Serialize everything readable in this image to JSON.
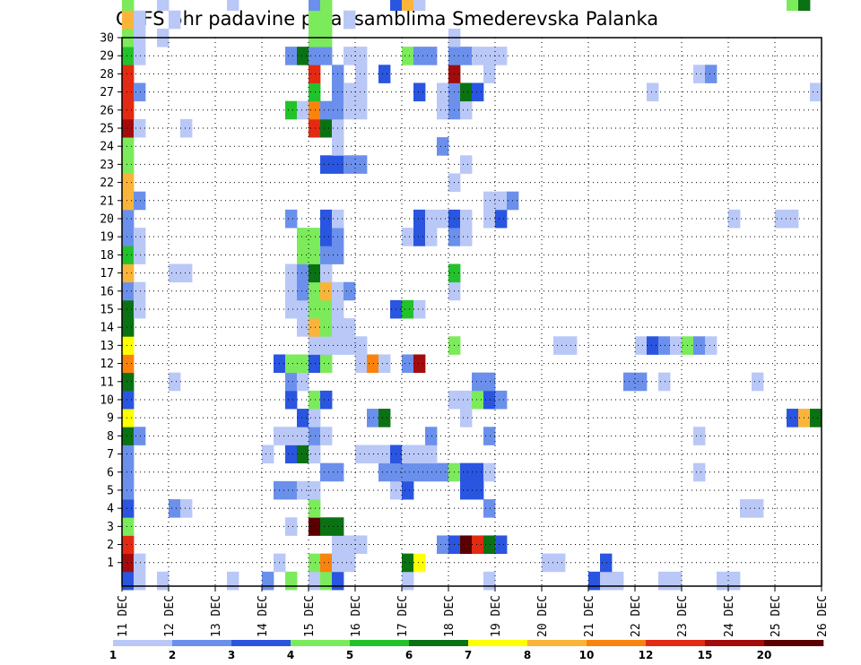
{
  "chart_data": {
    "type": "heatmap",
    "title": "GEFS 6hr padavine po ansamblima Smederevska Palanka",
    "xlabel": "",
    "ylabel": "",
    "x_tick_labels": [
      "11 DEC",
      "12 DEC",
      "13 DEC",
      "14 DEC",
      "15 DEC",
      "16 DEC",
      "17 DEC",
      "18 DEC",
      "19 DEC",
      "20 DEC",
      "21 DEC",
      "22 DEC",
      "23 DEC",
      "24 DEC",
      "25 DEC",
      "26 DEC"
    ],
    "y_tick_labels": [
      "1",
      "2",
      "3",
      "4",
      "5",
      "6",
      "7",
      "8",
      "9",
      "10",
      "11",
      "12",
      "13",
      "14",
      "15",
      "16",
      "17",
      "18",
      "19",
      "20",
      "21",
      "22",
      "23",
      "24",
      "25",
      "26",
      "27",
      "28",
      "29",
      "30"
    ],
    "x_range_days": [
      0,
      15
    ],
    "y_range": [
      0,
      30
    ],
    "grid": true,
    "time_step_hours": 6,
    "colorbar": {
      "labels": [
        "1",
        "2",
        "3",
        "4",
        "5",
        "6",
        "7",
        "8",
        "10",
        "12",
        "15",
        "20"
      ],
      "colors": [
        "#b9c8f7",
        "#6b90ec",
        "#2a55e0",
        "#7ceb5b",
        "#22c22a",
        "#0b7213",
        "#ffff00",
        "#fbb43a",
        "#fa830d",
        "#e32a12",
        "#a30c0c",
        "#5a0000"
      ]
    },
    "cells_note": "each entry: [ensemble member, 6-hour step index from 11 DEC 00z, color class 1-12]",
    "cells": [
      [
        0,
        0,
        3
      ],
      [
        0,
        1,
        1
      ],
      [
        0,
        3,
        1
      ],
      [
        0,
        9,
        1
      ],
      [
        0,
        12,
        2
      ],
      [
        0,
        14,
        4
      ],
      [
        0,
        16,
        1
      ],
      [
        0,
        17,
        4
      ],
      [
        0,
        18,
        3
      ],
      [
        0,
        24,
        1
      ],
      [
        0,
        31,
        1
      ],
      [
        0,
        40,
        3
      ],
      [
        0,
        41,
        1
      ],
      [
        0,
        42,
        1
      ],
      [
        0,
        46,
        1
      ],
      [
        0,
        47,
        1
      ],
      [
        0,
        51,
        1
      ],
      [
        0,
        52,
        1
      ],
      [
        1,
        0,
        11
      ],
      [
        1,
        1,
        1
      ],
      [
        1,
        13,
        1
      ],
      [
        1,
        16,
        4
      ],
      [
        1,
        17,
        9
      ],
      [
        1,
        18,
        1
      ],
      [
        1,
        19,
        1
      ],
      [
        1,
        24,
        6
      ],
      [
        1,
        25,
        7
      ],
      [
        1,
        36,
        1
      ],
      [
        1,
        37,
        1
      ],
      [
        1,
        41,
        3
      ],
      [
        2,
        0,
        10
      ],
      [
        2,
        18,
        1
      ],
      [
        2,
        19,
        1
      ],
      [
        2,
        20,
        1
      ],
      [
        2,
        27,
        2
      ],
      [
        2,
        28,
        3
      ],
      [
        2,
        29,
        12
      ],
      [
        2,
        30,
        10
      ],
      [
        2,
        31,
        6
      ],
      [
        2,
        32,
        3
      ],
      [
        3,
        0,
        4
      ],
      [
        3,
        14,
        1
      ],
      [
        3,
        16,
        12
      ],
      [
        3,
        17,
        6
      ],
      [
        3,
        18,
        6
      ],
      [
        4,
        0,
        3
      ],
      [
        4,
        4,
        2
      ],
      [
        4,
        5,
        1
      ],
      [
        4,
        16,
        4
      ],
      [
        4,
        31,
        2
      ],
      [
        4,
        53,
        1
      ],
      [
        4,
        54,
        1
      ],
      [
        5,
        0,
        2
      ],
      [
        5,
        13,
        2
      ],
      [
        5,
        14,
        2
      ],
      [
        5,
        15,
        1
      ],
      [
        5,
        16,
        1
      ],
      [
        5,
        23,
        1
      ],
      [
        5,
        24,
        3
      ],
      [
        5,
        29,
        3
      ],
      [
        5,
        30,
        3
      ],
      [
        6,
        0,
        2
      ],
      [
        6,
        17,
        2
      ],
      [
        6,
        18,
        2
      ],
      [
        6,
        22,
        2
      ],
      [
        6,
        23,
        2
      ],
      [
        6,
        24,
        2
      ],
      [
        6,
        25,
        2
      ],
      [
        6,
        26,
        2
      ],
      [
        6,
        27,
        2
      ],
      [
        6,
        28,
        4
      ],
      [
        6,
        29,
        3
      ],
      [
        6,
        30,
        3
      ],
      [
        6,
        31,
        1
      ],
      [
        6,
        49,
        1
      ],
      [
        7,
        0,
        2
      ],
      [
        7,
        12,
        1
      ],
      [
        7,
        14,
        3
      ],
      [
        7,
        15,
        6
      ],
      [
        7,
        16,
        1
      ],
      [
        7,
        20,
        1
      ],
      [
        7,
        21,
        1
      ],
      [
        7,
        22,
        1
      ],
      [
        7,
        23,
        3
      ],
      [
        7,
        24,
        1
      ],
      [
        7,
        25,
        1
      ],
      [
        7,
        26,
        1
      ],
      [
        8,
        0,
        6
      ],
      [
        8,
        1,
        2
      ],
      [
        8,
        13,
        1
      ],
      [
        8,
        14,
        1
      ],
      [
        8,
        15,
        1
      ],
      [
        8,
        16,
        2
      ],
      [
        8,
        17,
        1
      ],
      [
        8,
        26,
        2
      ],
      [
        8,
        31,
        2
      ],
      [
        8,
        49,
        1
      ],
      [
        9,
        0,
        7
      ],
      [
        9,
        15,
        3
      ],
      [
        9,
        16,
        1
      ],
      [
        9,
        21,
        2
      ],
      [
        9,
        22,
        6
      ],
      [
        9,
        29,
        1
      ],
      [
        9,
        57,
        3
      ],
      [
        9,
        58,
        8
      ],
      [
        9,
        59,
        6
      ],
      [
        10,
        0,
        3
      ],
      [
        10,
        14,
        3
      ],
      [
        10,
        16,
        4
      ],
      [
        10,
        17,
        3
      ],
      [
        10,
        28,
        1
      ],
      [
        10,
        29,
        1
      ],
      [
        10,
        30,
        4
      ],
      [
        10,
        31,
        3
      ],
      [
        10,
        32,
        2
      ],
      [
        11,
        0,
        6
      ],
      [
        11,
        4,
        1
      ],
      [
        11,
        14,
        2
      ],
      [
        11,
        15,
        1
      ],
      [
        11,
        30,
        2
      ],
      [
        11,
        31,
        2
      ],
      [
        11,
        43,
        2
      ],
      [
        11,
        44,
        2
      ],
      [
        11,
        46,
        1
      ],
      [
        11,
        54,
        1
      ],
      [
        12,
        0,
        9
      ],
      [
        12,
        13,
        3
      ],
      [
        12,
        14,
        4
      ],
      [
        12,
        15,
        4
      ],
      [
        12,
        16,
        3
      ],
      [
        12,
        17,
        4
      ],
      [
        12,
        20,
        1
      ],
      [
        12,
        21,
        9
      ],
      [
        12,
        22,
        1
      ],
      [
        12,
        24,
        2
      ],
      [
        12,
        25,
        11
      ],
      [
        13,
        0,
        7
      ],
      [
        13,
        16,
        1
      ],
      [
        13,
        17,
        1
      ],
      [
        13,
        18,
        1
      ],
      [
        13,
        19,
        1
      ],
      [
        13,
        20,
        1
      ],
      [
        13,
        28,
        4
      ],
      [
        13,
        37,
        1
      ],
      [
        13,
        38,
        1
      ],
      [
        13,
        44,
        1
      ],
      [
        13,
        45,
        3
      ],
      [
        13,
        46,
        2
      ],
      [
        13,
        47,
        1
      ],
      [
        13,
        48,
        4
      ],
      [
        13,
        49,
        2
      ],
      [
        13,
        50,
        1
      ],
      [
        14,
        0,
        6
      ],
      [
        14,
        15,
        1
      ],
      [
        14,
        16,
        8
      ],
      [
        14,
        17,
        4
      ],
      [
        14,
        18,
        1
      ],
      [
        14,
        19,
        1
      ],
      [
        15,
        0,
        6
      ],
      [
        15,
        1,
        1
      ],
      [
        15,
        14,
        1
      ],
      [
        15,
        15,
        1
      ],
      [
        15,
        16,
        4
      ],
      [
        15,
        17,
        4
      ],
      [
        15,
        18,
        1
      ],
      [
        15,
        23,
        3
      ],
      [
        15,
        24,
        5
      ],
      [
        15,
        25,
        1
      ],
      [
        16,
        0,
        2
      ],
      [
        16,
        1,
        1
      ],
      [
        16,
        14,
        1
      ],
      [
        16,
        15,
        2
      ],
      [
        16,
        16,
        4
      ],
      [
        16,
        17,
        8
      ],
      [
        16,
        18,
        1
      ],
      [
        16,
        19,
        2
      ],
      [
        16,
        28,
        1
      ],
      [
        17,
        0,
        8
      ],
      [
        17,
        4,
        1
      ],
      [
        17,
        5,
        1
      ],
      [
        17,
        14,
        1
      ],
      [
        17,
        15,
        2
      ],
      [
        17,
        16,
        6
      ],
      [
        17,
        17,
        1
      ],
      [
        17,
        28,
        5
      ],
      [
        18,
        0,
        5
      ],
      [
        18,
        1,
        1
      ],
      [
        18,
        15,
        4
      ],
      [
        18,
        16,
        4
      ],
      [
        18,
        17,
        2
      ],
      [
        18,
        18,
        2
      ],
      [
        19,
        0,
        2
      ],
      [
        19,
        1,
        1
      ],
      [
        19,
        15,
        4
      ],
      [
        19,
        16,
        4
      ],
      [
        19,
        17,
        3
      ],
      [
        19,
        18,
        2
      ],
      [
        19,
        24,
        1
      ],
      [
        19,
        25,
        3
      ],
      [
        19,
        26,
        1
      ],
      [
        19,
        28,
        2
      ],
      [
        19,
        29,
        1
      ],
      [
        20,
        0,
        2
      ],
      [
        20,
        14,
        2
      ],
      [
        20,
        17,
        3
      ],
      [
        20,
        18,
        1
      ],
      [
        20,
        25,
        3
      ],
      [
        20,
        26,
        1
      ],
      [
        20,
        27,
        1
      ],
      [
        20,
        28,
        3
      ],
      [
        20,
        29,
        1
      ],
      [
        20,
        31,
        1
      ],
      [
        20,
        32,
        3
      ],
      [
        20,
        52,
        1
      ],
      [
        20,
        56,
        1
      ],
      [
        20,
        57,
        1
      ],
      [
        21,
        0,
        8
      ],
      [
        21,
        1,
        2
      ],
      [
        21,
        31,
        1
      ],
      [
        21,
        32,
        1
      ],
      [
        21,
        33,
        2
      ],
      [
        22,
        0,
        8
      ],
      [
        22,
        28,
        1
      ],
      [
        23,
        0,
        4
      ],
      [
        23,
        17,
        3
      ],
      [
        23,
        18,
        3
      ],
      [
        23,
        19,
        2
      ],
      [
        23,
        20,
        2
      ],
      [
        23,
        29,
        1
      ],
      [
        24,
        0,
        4
      ],
      [
        24,
        18,
        1
      ],
      [
        24,
        27,
        2
      ],
      [
        25,
        0,
        11
      ],
      [
        25,
        1,
        1
      ],
      [
        25,
        5,
        1
      ],
      [
        25,
        16,
        10
      ],
      [
        25,
        17,
        6
      ],
      [
        25,
        18,
        1
      ],
      [
        26,
        0,
        10
      ],
      [
        26,
        14,
        5
      ],
      [
        26,
        15,
        1
      ],
      [
        26,
        16,
        9
      ],
      [
        26,
        17,
        2
      ],
      [
        26,
        18,
        2
      ],
      [
        26,
        19,
        1
      ],
      [
        26,
        20,
        1
      ],
      [
        26,
        27,
        1
      ],
      [
        26,
        28,
        2
      ],
      [
        26,
        29,
        1
      ],
      [
        27,
        0,
        10
      ],
      [
        27,
        1,
        2
      ],
      [
        27,
        16,
        5
      ],
      [
        27,
        18,
        2
      ],
      [
        27,
        19,
        1
      ],
      [
        27,
        20,
        1
      ],
      [
        27,
        25,
        3
      ],
      [
        27,
        27,
        1
      ],
      [
        27,
        28,
        2
      ],
      [
        27,
        29,
        6
      ],
      [
        27,
        30,
        3
      ],
      [
        27,
        45,
        1
      ],
      [
        27,
        59,
        1
      ],
      [
        28,
        0,
        10
      ],
      [
        28,
        16,
        10
      ],
      [
        28,
        18,
        2
      ],
      [
        28,
        20,
        1
      ],
      [
        28,
        22,
        3
      ],
      [
        28,
        28,
        11
      ],
      [
        28,
        31,
        1
      ],
      [
        28,
        49,
        1
      ],
      [
        28,
        50,
        2
      ],
      [
        29,
        0,
        5
      ],
      [
        29,
        1,
        1
      ],
      [
        29,
        14,
        2
      ],
      [
        29,
        15,
        6
      ],
      [
        29,
        16,
        2
      ],
      [
        29,
        17,
        2
      ],
      [
        29,
        19,
        1
      ],
      [
        29,
        20,
        1
      ],
      [
        29,
        24,
        4
      ],
      [
        29,
        25,
        2
      ],
      [
        29,
        26,
        2
      ],
      [
        29,
        28,
        2
      ],
      [
        29,
        29,
        2
      ],
      [
        29,
        30,
        1
      ],
      [
        29,
        31,
        1
      ],
      [
        29,
        32,
        1
      ],
      [
        30,
        0,
        4
      ],
      [
        30,
        1,
        1
      ],
      [
        30,
        3,
        1
      ],
      [
        30,
        16,
        4
      ],
      [
        30,
        17,
        4
      ],
      [
        30,
        28,
        1
      ],
      [
        31,
        0,
        8
      ],
      [
        31,
        1,
        1
      ],
      [
        31,
        4,
        1
      ],
      [
        31,
        16,
        4
      ],
      [
        31,
        17,
        4
      ],
      [
        31,
        19,
        1
      ],
      [
        32,
        0,
        4
      ],
      [
        32,
        3,
        1
      ],
      [
        32,
        9,
        1
      ],
      [
        32,
        16,
        2
      ],
      [
        32,
        17,
        4
      ],
      [
        32,
        23,
        3
      ],
      [
        32,
        24,
        8
      ],
      [
        32,
        25,
        1
      ],
      [
        32,
        57,
        4
      ],
      [
        32,
        58,
        6
      ],
      [
        33,
        0,
        4
      ],
      [
        33,
        3,
        1
      ],
      [
        33,
        9,
        1
      ],
      [
        33,
        15,
        5
      ],
      [
        33,
        16,
        11
      ],
      [
        33,
        23,
        1
      ],
      [
        33,
        24,
        1
      ],
      [
        33,
        25,
        1
      ],
      [
        33,
        26,
        1
      ],
      [
        33,
        27,
        1
      ],
      [
        33,
        28,
        1
      ],
      [
        33,
        29,
        1
      ],
      [
        33,
        30,
        4
      ],
      [
        33,
        31,
        1
      ]
    ]
  }
}
